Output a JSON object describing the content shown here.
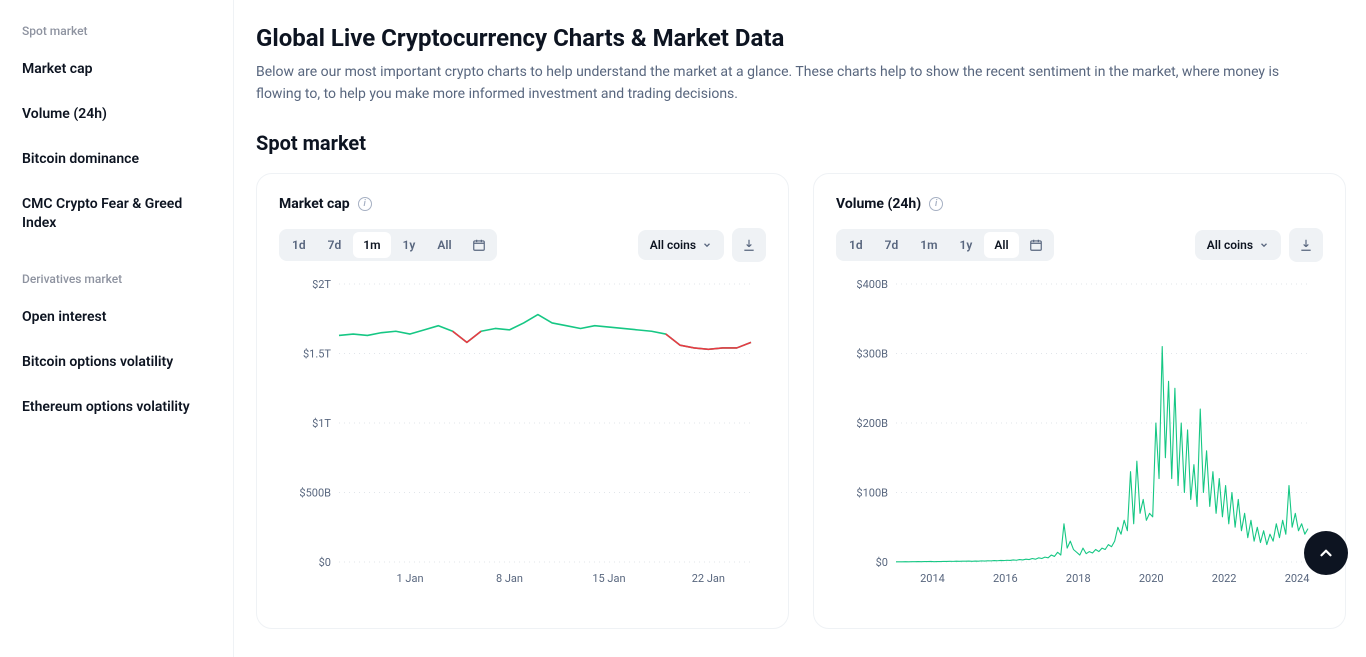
{
  "colors": {
    "text_primary": "#0d1421",
    "text_secondary": "#58667e",
    "text_muted": "#8e93a0",
    "border": "#eff2f5",
    "control_bg": "#eff2f5",
    "grid": "#e1e5ea",
    "line_up": "#16c784",
    "line_down": "#ea3943",
    "fab_bg": "#0d1421",
    "fab_icon": "#ffffff"
  },
  "sidebar": {
    "sections": [
      {
        "title": "Spot market",
        "items": [
          {
            "label": "Market cap"
          },
          {
            "label": "Volume (24h)"
          },
          {
            "label": "Bitcoin dominance"
          },
          {
            "label": "CMC Crypto Fear & Greed Index"
          }
        ]
      },
      {
        "title": "Derivatives market",
        "items": [
          {
            "label": "Open interest"
          },
          {
            "label": "Bitcoin options volatility"
          },
          {
            "label": "Ethereum options volatility"
          }
        ]
      }
    ]
  },
  "page": {
    "title": "Global Live Cryptocurrency Charts & Market Data",
    "description": "Below are our most important crypto charts to help understand the market at a glance. These charts help to show the recent sentiment in the market, where money is flowing to, to help you make more informed investment and trading decisions.",
    "section_heading": "Spot market"
  },
  "time_ranges": [
    "1d",
    "7d",
    "1m",
    "1y",
    "All"
  ],
  "filter_label": "All coins",
  "market_cap_chart": {
    "title": "Market cap",
    "type": "line",
    "active_range": "1m",
    "y_ticks": [
      {
        "label": "$2T",
        "value": 2000000000000
      },
      {
        "label": "$1.5T",
        "value": 1500000000000
      },
      {
        "label": "$1T",
        "value": 1000000000000
      },
      {
        "label": "$500B",
        "value": 500000000000
      },
      {
        "label": "$0",
        "value": 0
      }
    ],
    "y_domain": [
      0,
      2000000000000
    ],
    "x_labels": [
      "1 Jan",
      "8 Jan",
      "15 Jan",
      "22 Jan"
    ],
    "x_domain_days": 30,
    "line_color_up": "#16c784",
    "line_color_down": "#ea3943",
    "background_color": "#ffffff",
    "grid_color": "#e1e5ea",
    "series_trillions": [
      1.63,
      1.64,
      1.63,
      1.65,
      1.66,
      1.64,
      1.67,
      1.7,
      1.66,
      1.58,
      1.66,
      1.68,
      1.67,
      1.72,
      1.78,
      1.72,
      1.7,
      1.68,
      1.7,
      1.69,
      1.68,
      1.67,
      1.66,
      1.64,
      1.56,
      1.54,
      1.53,
      1.54,
      1.54,
      1.58
    ],
    "down_segments_day_indices": [
      [
        8,
        10
      ],
      [
        23,
        29
      ]
    ]
  },
  "volume_chart": {
    "title": "Volume (24h)",
    "type": "line",
    "active_range": "All",
    "y_ticks": [
      {
        "label": "$400B",
        "value": 400000000000
      },
      {
        "label": "$300B",
        "value": 300000000000
      },
      {
        "label": "$200B",
        "value": 200000000000
      },
      {
        "label": "$100B",
        "value": 100000000000
      },
      {
        "label": "$0",
        "value": 0
      }
    ],
    "y_domain": [
      0,
      400000000000
    ],
    "x_labels": [
      "2014",
      "2016",
      "2018",
      "2020",
      "2022",
      "2024"
    ],
    "x_domain_years": [
      2013,
      2024.3
    ],
    "line_color": "#16c784",
    "fill_color": "#16c784",
    "fill_opacity": 0.0,
    "background_color": "#ffffff",
    "grid_color": "#e1e5ea",
    "series_billions": [
      0.2,
      0.3,
      0.2,
      0.4,
      0.3,
      0.5,
      0.4,
      0.6,
      0.5,
      0.7,
      0.6,
      0.8,
      0.5,
      0.7,
      0.6,
      0.9,
      0.8,
      1.0,
      0.9,
      1.1,
      1.0,
      1.2,
      1.1,
      1.3,
      1.0,
      1.4,
      1.2,
      1.6,
      1.4,
      1.8,
      1.6,
      2.0,
      1.8,
      2.2,
      2.0,
      2.5,
      2.2,
      3.0,
      2.5,
      3.5,
      3.0,
      4.0,
      3.5,
      5.0,
      4.0,
      6.0,
      5.0,
      7.0,
      6.0,
      10.0,
      8.0,
      14.0,
      10.0,
      55.0,
      20.0,
      30.0,
      18.0,
      14.0,
      10.0,
      20.0,
      12.0,
      15.0,
      13.0,
      18.0,
      15.0,
      20.0,
      18.0,
      25.0,
      22.0,
      30.0,
      50.0,
      40.0,
      60.0,
      45.0,
      130.0,
      55.0,
      145.0,
      70.0,
      90.0,
      60.0,
      70.0,
      65.0,
      200.0,
      120.0,
      310.0,
      150.0,
      260.0,
      120.0,
      250.0,
      110.0,
      200.0,
      100.0,
      190.0,
      90.0,
      140.0,
      80.0,
      220.0,
      100.0,
      160.0,
      80.0,
      130.0,
      70.0,
      120.0,
      65.0,
      110.0,
      55.0,
      100.0,
      50.0,
      90.0,
      45.0,
      70.0,
      35.0,
      60.0,
      30.0,
      50.0,
      28.0,
      45.0,
      25.0,
      40.0,
      30.0,
      55.0,
      35.0,
      60.0,
      40.0,
      110.0,
      50.0,
      70.0,
      45.0,
      55.0,
      40.0,
      48.0
    ]
  }
}
